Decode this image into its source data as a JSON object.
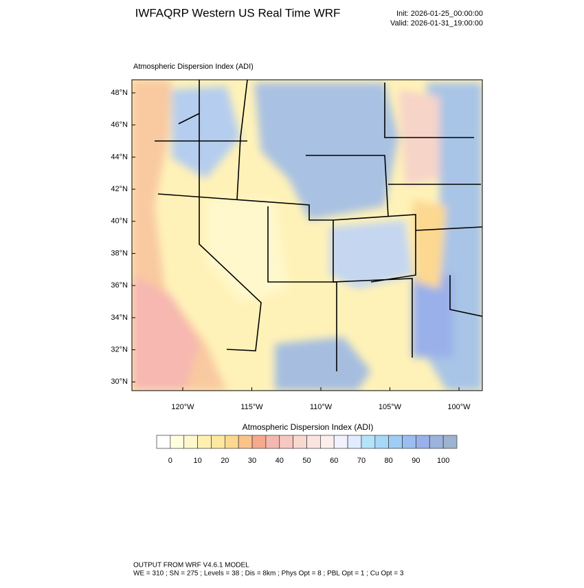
{
  "header": {
    "title": "IWFAQRP Western US Real Time WRF",
    "init": "Init: 2026-01-25_00:00:00",
    "valid": "Valid: 2026-01-31_19:00:00"
  },
  "map": {
    "label": "Atmospheric Dispersion Index   (ADI)",
    "lat_labels": [
      "48°N",
      "46°N",
      "44°N",
      "42°N",
      "40°N",
      "38°N",
      "36°N",
      "34°N",
      "32°N",
      "30°N"
    ],
    "lon_labels": [
      "120°W",
      "115°W",
      "110°W",
      "105°W",
      "100°W"
    ]
  },
  "colorbar": {
    "title": "Atmospheric Dispersion Index  (ADI)",
    "colors": [
      "#ffffff",
      "#ffffe0",
      "#fff8cc",
      "#fff0b0",
      "#fde8a0",
      "#fcd890",
      "#f9c38a",
      "#f6a98c",
      "#f4b8b0",
      "#f6c8c0",
      "#f9d8d0",
      "#fbe4e0",
      "#fbeeed",
      "#f2f2ff",
      "#e0ecff",
      "#b4e4fa",
      "#a6d8f8",
      "#9fcdf5",
      "#9bbdf0",
      "#9ab0ea",
      "#9cb3dc",
      "#9db3cf"
    ],
    "labels": [
      "0",
      "10",
      "20",
      "30",
      "40",
      "50",
      "60",
      "70",
      "80",
      "90",
      "100"
    ]
  },
  "footer": {
    "line1": "OUTPUT FROM WRF V4.6.1 MODEL",
    "line2": "WE = 310 ; SN = 275 ; Levels = 38 ; Dis = 8km ; Phys Opt = 8 ; PBL Opt = 1 ; Cu Opt = 3"
  }
}
